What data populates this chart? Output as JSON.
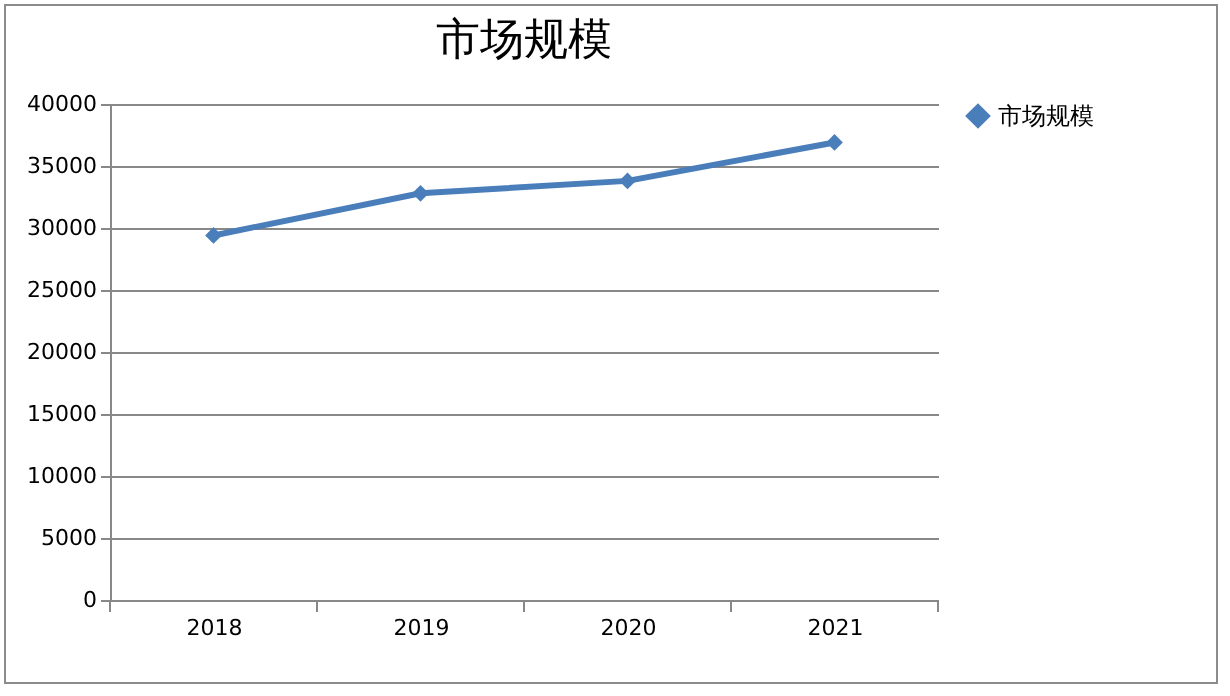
{
  "chart_data": {
    "type": "line",
    "title": "市场规模",
    "categories": [
      "2018",
      "2019",
      "2020",
      "2021"
    ],
    "series": [
      {
        "name": "市场规模",
        "color": "#4a7ebb",
        "values": [
          29400,
          32800,
          33800,
          36900
        ]
      }
    ],
    "ylim": [
      0,
      40000
    ],
    "yticks": [
      0,
      5000,
      10000,
      15000,
      20000,
      25000,
      30000,
      35000,
      40000
    ],
    "grid": "y",
    "legend": "right",
    "marker": "diamond",
    "line_style": "solid"
  }
}
